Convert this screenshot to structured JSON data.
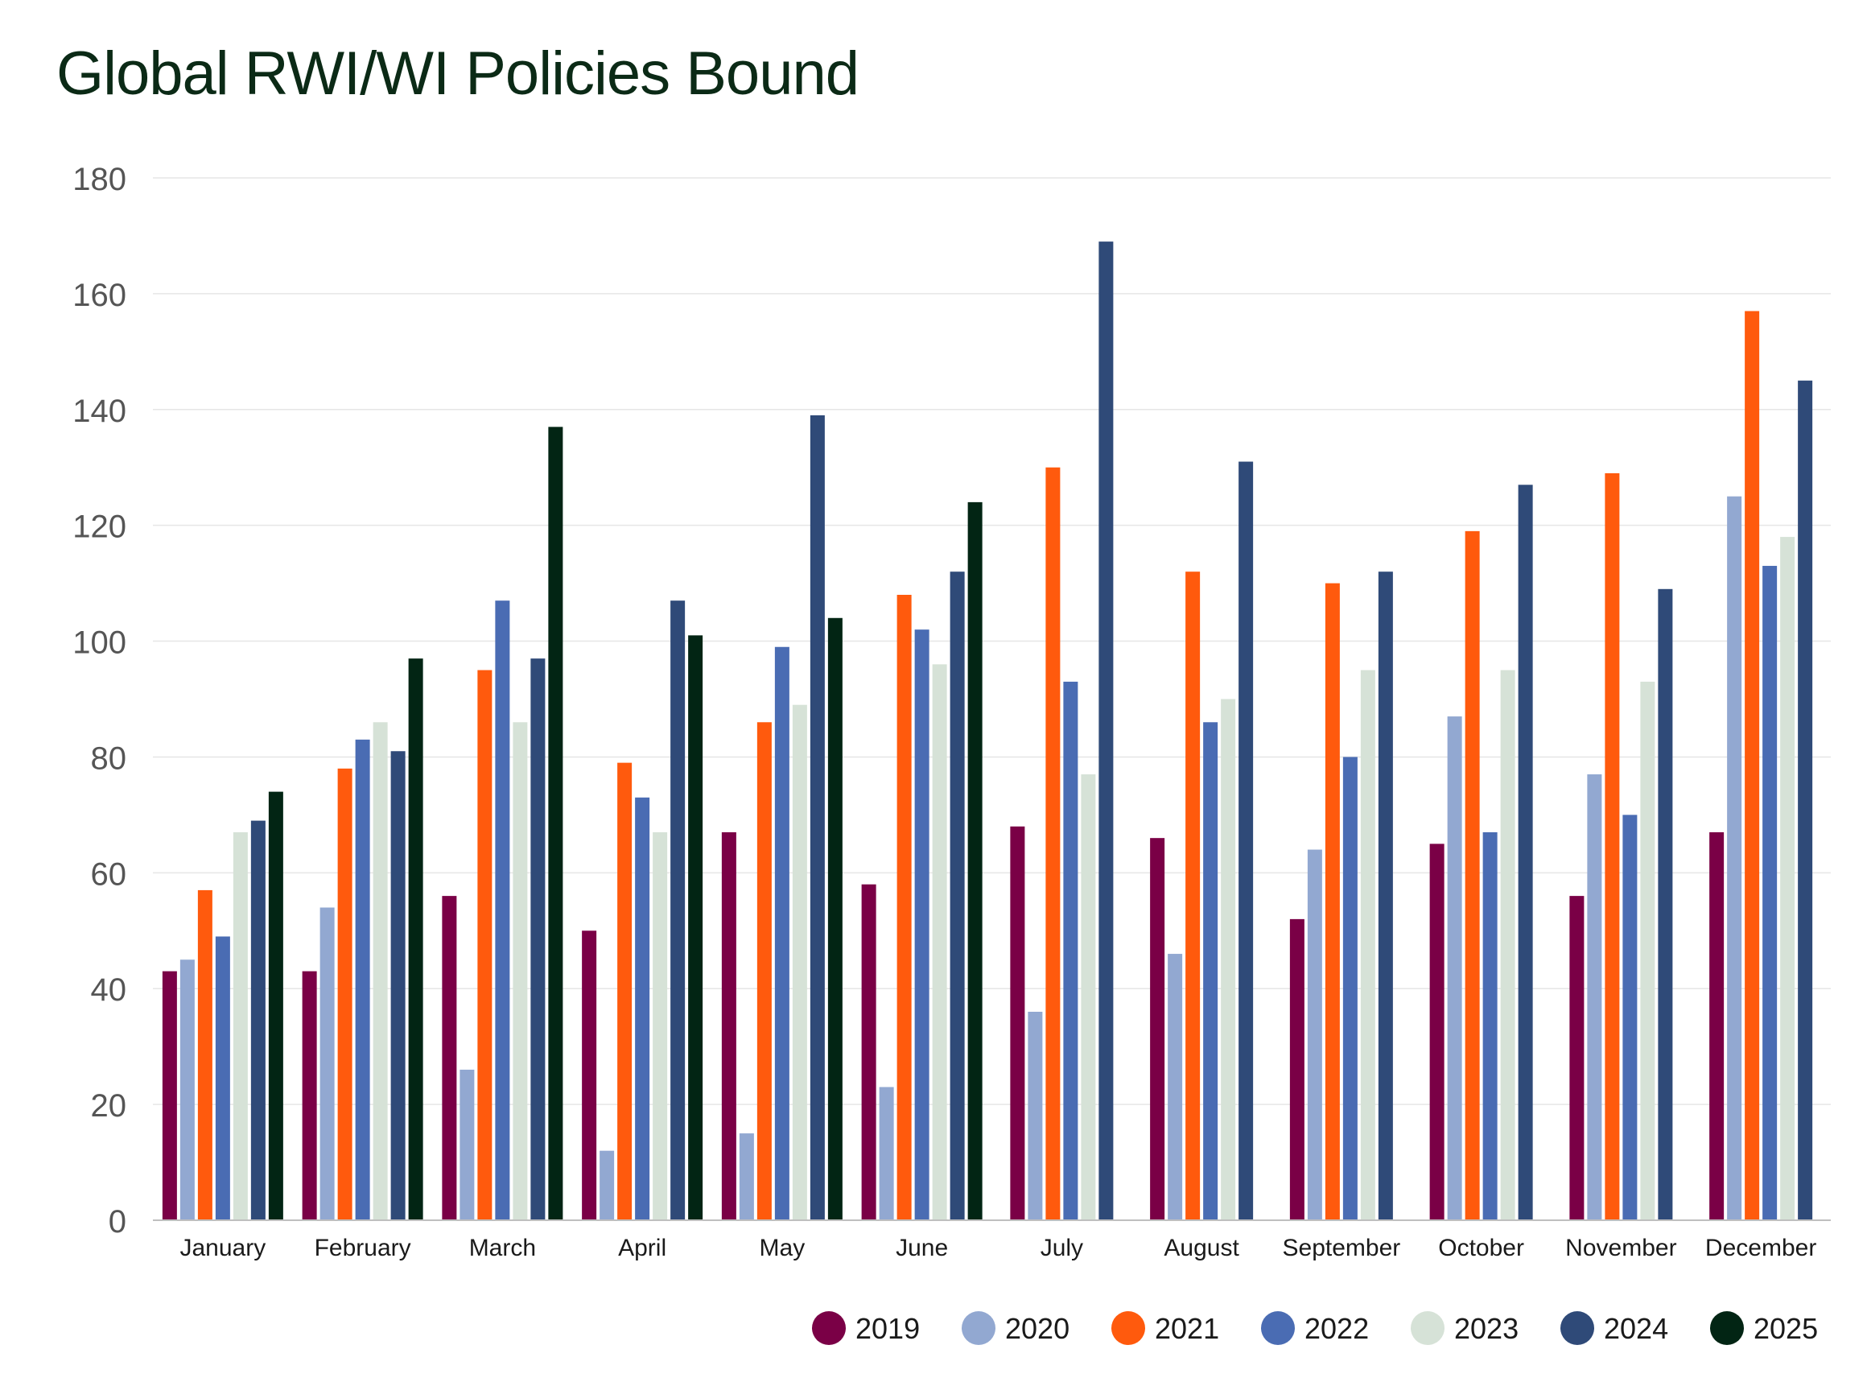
{
  "chart_data": {
    "type": "bar",
    "title": "Global RWI/WI Policies Bound",
    "xlabel": "",
    "ylabel": "",
    "ylim": [
      0,
      180
    ],
    "yticks": [
      0,
      20,
      40,
      60,
      80,
      100,
      120,
      140,
      160,
      180
    ],
    "grid": true,
    "legend_position": "bottom-right",
    "categories": [
      "January",
      "February",
      "March",
      "April",
      "May",
      "June",
      "July",
      "August",
      "September",
      "October",
      "November",
      "December"
    ],
    "series": [
      {
        "name": "2019",
        "color": "#7a0046",
        "values": [
          43,
          43,
          56,
          50,
          67,
          58,
          68,
          66,
          52,
          65,
          56,
          67
        ]
      },
      {
        "name": "2020",
        "color": "#92a8d1",
        "values": [
          45,
          54,
          26,
          12,
          15,
          23,
          36,
          46,
          64,
          87,
          77,
          125
        ]
      },
      {
        "name": "2021",
        "color": "#ff5a0d",
        "values": [
          57,
          78,
          95,
          79,
          86,
          108,
          130,
          112,
          110,
          119,
          129,
          157
        ]
      },
      {
        "name": "2022",
        "color": "#4a6cb3",
        "values": [
          49,
          83,
          107,
          73,
          99,
          102,
          93,
          86,
          80,
          67,
          70,
          113
        ]
      },
      {
        "name": "2023",
        "color": "#d6e2d7",
        "values": [
          67,
          86,
          86,
          67,
          89,
          96,
          77,
          90,
          95,
          95,
          93,
          118
        ]
      },
      {
        "name": "2024",
        "color": "#2f4a78",
        "values": [
          69,
          81,
          97,
          107,
          139,
          112,
          169,
          131,
          112,
          127,
          109,
          145
        ]
      },
      {
        "name": "2025",
        "color": "#022514",
        "values": [
          74,
          97,
          137,
          101,
          104,
          124,
          null,
          null,
          null,
          null,
          null,
          null
        ]
      }
    ]
  }
}
